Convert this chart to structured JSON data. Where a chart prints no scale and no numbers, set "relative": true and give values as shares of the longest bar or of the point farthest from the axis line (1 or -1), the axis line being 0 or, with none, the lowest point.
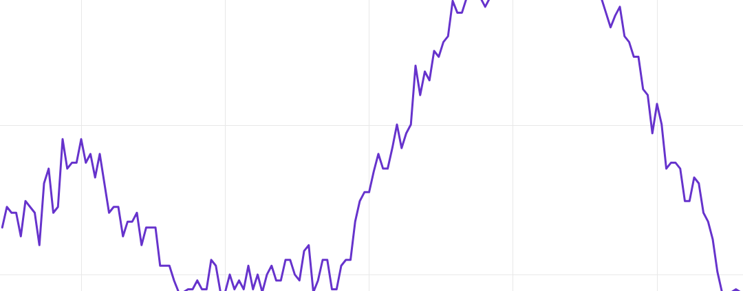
{
  "chart_data": {
    "type": "line",
    "relative": true,
    "grid": true,
    "marker": "none",
    "categories": [
      null,
      null,
      null,
      null,
      null,
      null,
      null,
      null,
      null,
      null,
      null,
      null,
      null,
      null,
      null,
      null,
      null,
      null,
      null,
      null,
      null,
      null,
      null,
      null,
      null,
      null,
      null,
      null,
      null,
      null,
      null,
      null,
      null,
      null,
      null,
      null,
      null,
      null,
      null,
      null,
      null,
      null,
      null,
      null,
      null,
      null,
      null,
      null,
      null,
      null,
      null,
      null,
      null,
      null,
      null,
      null,
      null,
      null,
      null,
      null,
      null,
      null,
      null,
      null,
      null,
      null,
      null,
      null,
      null,
      null,
      null,
      null,
      null,
      null,
      null,
      null,
      null,
      null,
      null,
      null,
      null,
      null,
      null,
      null,
      null,
      null,
      null,
      null,
      null,
      null,
      null,
      null,
      null,
      null,
      null,
      null,
      null,
      null,
      null,
      null,
      null,
      null,
      null,
      null,
      null,
      null,
      null,
      null,
      null,
      null,
      null,
      null,
      null,
      null,
      null,
      null,
      null,
      null,
      null,
      null,
      null,
      null,
      null,
      null,
      null,
      null,
      null,
      null,
      null,
      null,
      null,
      null,
      null,
      null,
      null,
      null,
      null,
      null,
      null,
      null,
      null,
      null,
      null,
      null,
      null,
      null,
      null,
      null,
      null,
      null,
      null,
      null,
      null,
      null,
      null,
      null,
      null,
      null,
      null,
      null
    ],
    "series": [
      {
        "color": "#6633cc",
        "values": [
          0.22,
          0.29,
          0.27,
          0.27,
          0.19,
          0.31,
          0.29,
          0.27,
          0.16,
          0.37,
          0.42,
          0.27,
          0.29,
          0.52,
          0.42,
          0.44,
          0.44,
          0.52,
          0.44,
          0.47,
          0.39,
          0.47,
          0.37,
          0.27,
          0.29,
          0.29,
          0.19,
          0.24,
          0.24,
          0.27,
          0.16,
          0.22,
          0.22,
          0.22,
          0.09,
          0.09,
          0.09,
          0.04,
          0,
          0,
          0.01,
          0.01,
          0.04,
          0.01,
          0.01,
          0.11,
          0.09,
          0,
          0,
          0.06,
          0.01,
          0.04,
          0.01,
          0.09,
          0.01,
          0.06,
          0,
          0.06,
          0.09,
          0.04,
          0.04,
          0.11,
          0.11,
          0.06,
          0.04,
          0.14,
          0.16,
          0,
          0.04,
          0.11,
          0.11,
          0.01,
          0.01,
          0.09,
          0.11,
          0.11,
          0.24,
          0.31,
          0.34,
          0.34,
          0.41,
          0.47,
          0.42,
          0.42,
          0.49,
          0.57,
          0.49,
          0.54,
          0.57,
          0.77,
          0.67,
          0.75,
          0.72,
          0.82,
          0.8,
          0.85,
          0.87,
          0.99,
          0.95,
          0.95,
          1,
          null,
          null,
          1,
          0.97,
          1,
          null,
          null,
          null,
          null,
          null,
          null,
          null,
          null,
          null,
          null,
          null,
          null,
          null,
          null,
          null,
          null,
          null,
          null,
          null,
          null,
          null,
          null,
          null,
          1,
          0.95,
          0.9,
          0.94,
          0.97,
          0.87,
          0.85,
          0.8,
          0.8,
          0.69,
          0.67,
          0.54,
          0.64,
          0.57,
          0.42,
          0.44,
          0.44,
          0.42,
          0.31,
          0.31,
          0.39,
          0.37,
          0.27,
          0.24,
          0.18,
          0.07,
          0,
          null,
          0,
          0.01,
          0
        ]
      }
    ]
  }
}
